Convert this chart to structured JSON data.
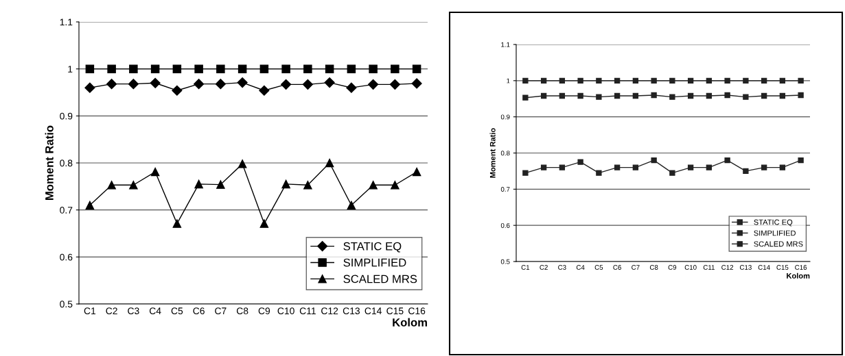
{
  "chart_data": [
    {
      "type": "line",
      "ylabel": "Moment Ratio",
      "xlabel": "Kolom",
      "categories": [
        "C1",
        "C2",
        "C3",
        "C4",
        "C5",
        "C6",
        "C7",
        "C8",
        "C9",
        "C10",
        "C11",
        "C12",
        "C13",
        "C14",
        "C15",
        "C16"
      ],
      "series": [
        {
          "name": "STATIC EQ",
          "color": "#000000",
          "marker": "diamond",
          "values": [
            0.96,
            0.968,
            0.968,
            0.97,
            0.954,
            0.968,
            0.968,
            0.971,
            0.954,
            0.967,
            0.967,
            0.971,
            0.96,
            0.967,
            0.967,
            0.969
          ]
        },
        {
          "name": "SIMPLIFIED",
          "color": "#000000",
          "marker": "square",
          "values": [
            1.0,
            1.0,
            1.0,
            1.0,
            1.0,
            1.0,
            1.0,
            1.0,
            1.0,
            1.0,
            1.0,
            1.0,
            1.0,
            1.0,
            1.0,
            1.0
          ]
        },
        {
          "name": "SCALED MRS",
          "color": "#000000",
          "marker": "triangle",
          "values": [
            0.71,
            0.753,
            0.753,
            0.781,
            0.671,
            0.755,
            0.754,
            0.798,
            0.671,
            0.755,
            0.753,
            0.8,
            0.71,
            0.753,
            0.753,
            0.781
          ]
        }
      ],
      "ylim": [
        0.5,
        1.1
      ],
      "yticks": [
        {
          "value": 0.5,
          "label": "0.5"
        },
        {
          "value": 0.6,
          "label": "0.6"
        },
        {
          "value": 0.7,
          "label": "0.7"
        },
        {
          "value": 0.8,
          "label": "0.8"
        },
        {
          "value": 0.9,
          "label": "0.9"
        },
        {
          "value": 1.0,
          "label": "1"
        },
        {
          "value": 1.1,
          "label": "1.1"
        }
      ],
      "grid": "y",
      "legend": "lower right",
      "line_style": "solid"
    },
    {
      "type": "line",
      "ylabel": "Moment Ratio",
      "xlabel": "Kolom",
      "categories": [
        "C1",
        "C2",
        "C3",
        "C4",
        "C5",
        "C6",
        "C7",
        "C8",
        "C9",
        "C10",
        "C11",
        "C12",
        "C13",
        "C14",
        "C15",
        "C16"
      ],
      "series": [
        {
          "name": "STATIC EQ",
          "color": "#222222",
          "marker": "square",
          "values": [
            0.953,
            0.958,
            0.958,
            0.958,
            0.955,
            0.958,
            0.958,
            0.96,
            0.955,
            0.958,
            0.958,
            0.96,
            0.955,
            0.958,
            0.958,
            0.96
          ]
        },
        {
          "name": "SIMPLIFIED",
          "color": "#222222",
          "marker": "square",
          "values": [
            1.0,
            1.0,
            1.0,
            1.0,
            1.0,
            1.0,
            1.0,
            1.0,
            1.0,
            1.0,
            1.0,
            1.0,
            1.0,
            1.0,
            1.0,
            1.0
          ]
        },
        {
          "name": "SCALED MRS",
          "color": "#222222",
          "marker": "square",
          "values": [
            0.745,
            0.76,
            0.76,
            0.775,
            0.745,
            0.76,
            0.76,
            0.78,
            0.745,
            0.76,
            0.76,
            0.78,
            0.75,
            0.76,
            0.76,
            0.78
          ]
        }
      ],
      "ylim": [
        0.5,
        1.1
      ],
      "yticks": [
        {
          "value": 0.5,
          "label": "0.5"
        },
        {
          "value": 0.6,
          "label": "0.6"
        },
        {
          "value": 0.7,
          "label": "0.7"
        },
        {
          "value": 0.8,
          "label": "0.8"
        },
        {
          "value": 0.9,
          "label": "0.9"
        },
        {
          "value": 1.0,
          "label": "1"
        },
        {
          "value": 1.1,
          "label": "1.1"
        }
      ],
      "grid": "y",
      "legend": "lower right",
      "line_style": "solid"
    }
  ]
}
